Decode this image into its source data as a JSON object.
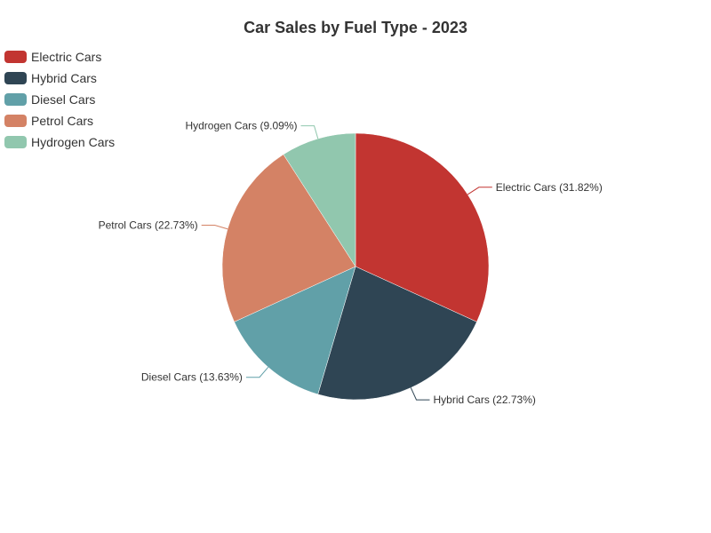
{
  "chart_data": {
    "type": "pie",
    "title": "Car Sales by Fuel Type - 2023",
    "legend_position": "top-left",
    "slices": [
      {
        "name": "Electric Cars",
        "value": 31.82,
        "label": "Electric Cars (31.82%)",
        "color": "#c23531"
      },
      {
        "name": "Hybrid Cars",
        "value": 22.73,
        "label": "Hybrid Cars (22.73%)",
        "color": "#2f4554"
      },
      {
        "name": "Diesel Cars",
        "value": 13.63,
        "label": "Diesel Cars (13.63%)",
        "color": "#61a0a8"
      },
      {
        "name": "Petrol Cars",
        "value": 22.73,
        "label": "Petrol Cars (22.73%)",
        "color": "#d48265"
      },
      {
        "name": "Hydrogen Cars",
        "value": 9.09,
        "label": "Hydrogen Cars (9.09%)",
        "color": "#91c7ae"
      }
    ]
  }
}
